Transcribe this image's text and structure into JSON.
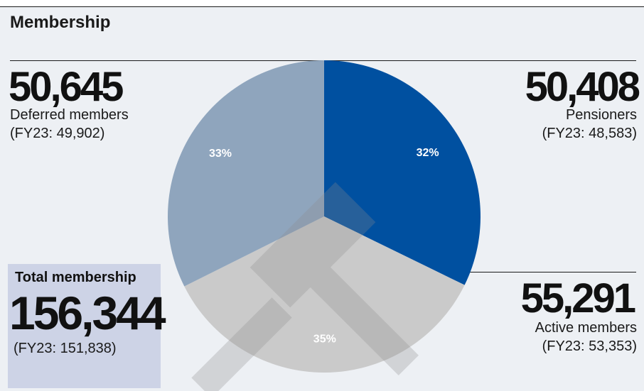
{
  "title": "Membership",
  "chart_data": {
    "type": "pie",
    "slices": [
      {
        "name": "Pensioners",
        "value": 50408,
        "percent_label": "32%",
        "color": "#0050a0"
      },
      {
        "name": "Active members",
        "value": 55291,
        "percent_label": "35%",
        "color": "#cacaca"
      },
      {
        "name": "Deferred members",
        "value": 50645,
        "percent_label": "33%",
        "color": "#8fa5bd"
      }
    ]
  },
  "deferred": {
    "value": "50,645",
    "label": "Deferred members",
    "previous": "(FY23: 49,902)"
  },
  "pensioners": {
    "value": "50,408",
    "label": "Pensioners",
    "previous": "(FY23: 48,583)"
  },
  "active": {
    "value": "55,291",
    "label": "Active members",
    "previous": "(FY23: 53,353)"
  },
  "total": {
    "title": "Total membership",
    "value": "156,344",
    "previous": "(FY23: 151,838)"
  },
  "colors": {
    "watermark": "#8c8c8c"
  }
}
